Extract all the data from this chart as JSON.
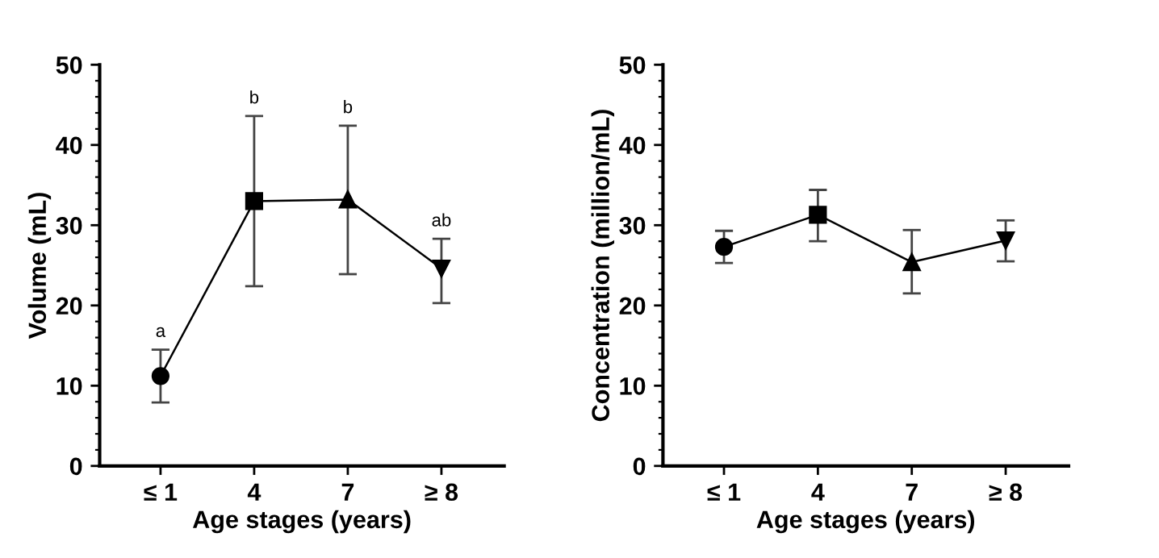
{
  "chart_data": [
    {
      "type": "line",
      "xlabel": "Age stages (years)",
      "ylabel": "Volume (mL)",
      "categories": [
        "≤ 1",
        "4",
        "7",
        "≥ 8"
      ],
      "series": [
        {
          "color": "#000000",
          "values": [
            11.2,
            33.0,
            33.2,
            24.6
          ],
          "errors": [
            [
              7.9,
              14.5
            ],
            [
              22.4,
              43.6
            ],
            [
              23.9,
              42.4
            ],
            [
              20.3,
              28.3
            ]
          ],
          "marker": [
            "circle",
            "square",
            "triangle",
            "triangle_down"
          ]
        }
      ],
      "ylim": [
        0,
        50
      ],
      "yticks": [
        0,
        10,
        20,
        30,
        40,
        50
      ],
      "grid": false,
      "legend": false,
      "line_style": "solid",
      "annotations": [
        {
          "text": "a",
          "x": "≤ 1",
          "y": 14.5
        },
        {
          "text": "b",
          "x": "4",
          "y": 43.6
        },
        {
          "text": "b",
          "x": "7",
          "y": 42.4
        },
        {
          "text": "ab",
          "x": "≥ 8",
          "y": 28.3
        }
      ]
    },
    {
      "type": "line",
      "xlabel": "Age stages (years)",
      "ylabel": "Concentration (million/mL)",
      "categories": [
        "≤ 1",
        "4",
        "7",
        "≥ 8"
      ],
      "series": [
        {
          "color": "#000000",
          "values": [
            27.3,
            31.3,
            25.4,
            28.1
          ],
          "errors": [
            [
              25.3,
              29.3
            ],
            [
              28.0,
              34.4
            ],
            [
              21.5,
              29.4
            ],
            [
              25.5,
              30.6
            ]
          ],
          "marker": [
            "circle",
            "square",
            "triangle",
            "triangle_down"
          ]
        }
      ],
      "ylim": [
        0,
        50
      ],
      "yticks": [
        0,
        10,
        20,
        30,
        40,
        50
      ],
      "grid": false,
      "legend": false,
      "line_style": "solid"
    }
  ]
}
